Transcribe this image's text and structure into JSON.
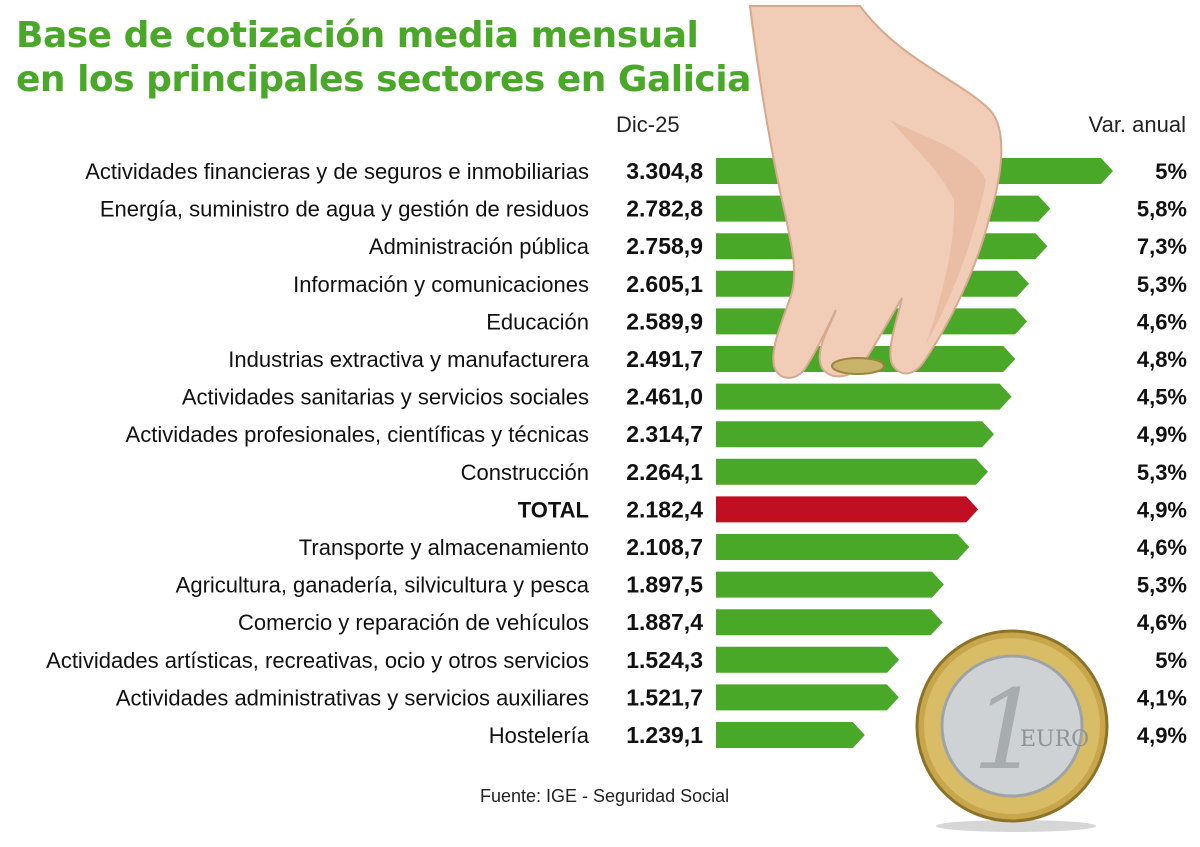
{
  "title_line1": "Base de cotización media mensual",
  "title_line2": "en los principales sectores en Galicia",
  "col_value_header": "Dic-25",
  "col_var_header": "Var. anual",
  "source": "Fuente: IGE - Seguridad Social",
  "colors": {
    "title": "#4aa829",
    "bar": "#4aa829",
    "bar_total": "#c00f22",
    "text": "#111111"
  },
  "chart_data": {
    "type": "bar",
    "orientation": "horizontal",
    "categories": [
      "Actividades financieras y de seguros e inmobiliarias",
      "Energía, suministro de agua y gestión de residuos",
      "Administración pública",
      "Información y comunicaciones",
      "Educación",
      "Industrias extractiva y manufacturera",
      "Actividades sanitarias y servicios sociales",
      "Actividades profesionales, científicas y técnicas",
      "Construcción",
      "TOTAL",
      "Transporte y almacenamiento",
      "Agricultura, ganadería, silvicultura y pesca",
      "Comercio y reparación de vehículos",
      "Actividades artísticas, recreativas, ocio y otros servicios",
      "Actividades administrativas y servicios auxiliares",
      "Hostelería"
    ],
    "values": [
      3304.8,
      2782.8,
      2758.9,
      2605.1,
      2589.9,
      2491.7,
      2461.0,
      2314.7,
      2264.1,
      2182.4,
      2108.7,
      1897.5,
      1887.4,
      1524.3,
      1521.7,
      1239.1
    ],
    "value_labels": [
      "3.304,8",
      "2.782,8",
      "2.758,9",
      "2.605,1",
      "2.589,9",
      "2.491,7",
      "2.461,0",
      "2.314,7",
      "2.264,1",
      "2.182,4",
      "2.108,7",
      "1.897,5",
      "1.887,4",
      "1.524,3",
      "1.521,7",
      "1.239,1"
    ],
    "var_labels": [
      "5%",
      "5,8%",
      "7,3%",
      "5,3%",
      "4,6%",
      "4,8%",
      "4,5%",
      "4,9%",
      "5,3%",
      "4,9%",
      "4,6%",
      "5,3%",
      "4,6%",
      "5%",
      "4,1%",
      "4,9%"
    ],
    "highlight": "TOTAL",
    "xlim": [
      0,
      3304.8
    ]
  }
}
